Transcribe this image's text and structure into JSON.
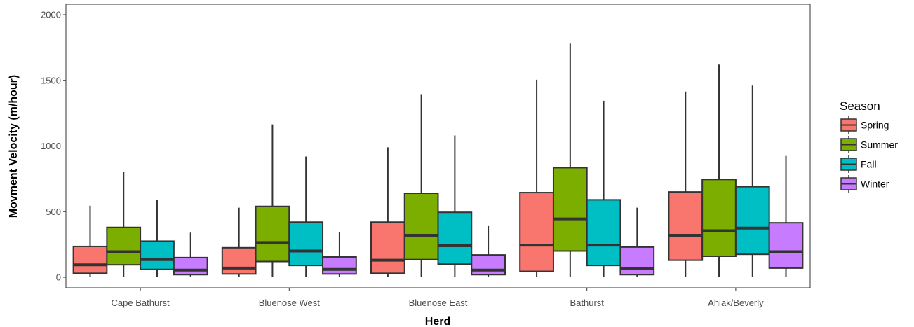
{
  "chart_data": {
    "type": "boxplot",
    "xlabel": "Herd",
    "ylabel": "Movment Velocity (m/hour)",
    "ylim": [
      -80,
      2080
    ],
    "yticks": [
      0,
      500,
      1000,
      1500,
      2000
    ],
    "grid": false,
    "legend": {
      "title": "Season",
      "placement": "right"
    },
    "categories": [
      "Cape Bathurst",
      "Bluenose West",
      "Bluenose East",
      "Bathurst",
      "Ahiak/Beverly"
    ],
    "series": [
      {
        "name": "Spring",
        "color": "#F8766D",
        "boxes": [
          {
            "min": 0,
            "q1": 30,
            "median": 95,
            "q3": 235,
            "max": 545
          },
          {
            "min": 0,
            "q1": 25,
            "median": 70,
            "q3": 225,
            "max": 530
          },
          {
            "min": 0,
            "q1": 30,
            "median": 130,
            "q3": 420,
            "max": 990
          },
          {
            "min": 0,
            "q1": 45,
            "median": 245,
            "q3": 645,
            "max": 1505
          },
          {
            "min": 0,
            "q1": 130,
            "median": 320,
            "q3": 650,
            "max": 1415
          }
        ]
      },
      {
        "name": "Summer",
        "color": "#7CAE00",
        "boxes": [
          {
            "min": 0,
            "q1": 95,
            "median": 195,
            "q3": 380,
            "max": 800
          },
          {
            "min": 0,
            "q1": 120,
            "median": 265,
            "q3": 540,
            "max": 1165
          },
          {
            "min": 0,
            "q1": 135,
            "median": 320,
            "q3": 640,
            "max": 1395
          },
          {
            "min": 0,
            "q1": 200,
            "median": 445,
            "q3": 835,
            "max": 1780
          },
          {
            "min": 0,
            "q1": 160,
            "median": 355,
            "q3": 745,
            "max": 1620
          }
        ]
      },
      {
        "name": "Fall",
        "color": "#00BFC4",
        "boxes": [
          {
            "min": 0,
            "q1": 60,
            "median": 135,
            "q3": 275,
            "max": 590
          },
          {
            "min": 0,
            "q1": 90,
            "median": 200,
            "q3": 420,
            "max": 920
          },
          {
            "min": 0,
            "q1": 100,
            "median": 240,
            "q3": 495,
            "max": 1080
          },
          {
            "min": 0,
            "q1": 90,
            "median": 245,
            "q3": 590,
            "max": 1345
          },
          {
            "min": 0,
            "q1": 175,
            "median": 375,
            "q3": 690,
            "max": 1460
          }
        ]
      },
      {
        "name": "Winter",
        "color": "#C77CFF",
        "boxes": [
          {
            "min": 0,
            "q1": 20,
            "median": 55,
            "q3": 150,
            "max": 340
          },
          {
            "min": 0,
            "q1": 25,
            "median": 60,
            "q3": 155,
            "max": 345
          },
          {
            "min": 0,
            "q1": 20,
            "median": 55,
            "q3": 170,
            "max": 390
          },
          {
            "min": 0,
            "q1": 20,
            "median": 65,
            "q3": 230,
            "max": 530
          },
          {
            "min": 0,
            "q1": 70,
            "median": 195,
            "q3": 415,
            "max": 925
          }
        ]
      }
    ]
  }
}
